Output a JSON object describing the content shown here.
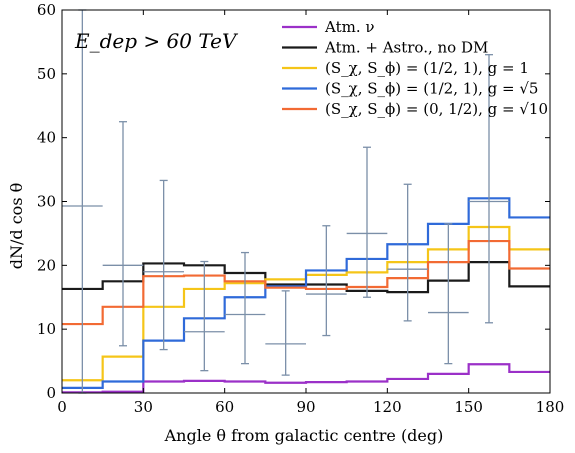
{
  "chart_data": {
    "type": "step",
    "annotation": "E_dep > 60 TeV",
    "xlabel": "Angle θ from galactic centre (deg)",
    "ylabel": "dN/d cos θ",
    "xlim": [
      0,
      180
    ],
    "ylim": [
      0,
      60
    ],
    "xticks": [
      "0",
      "30",
      "60",
      "90",
      "120",
      "150",
      "180"
    ],
    "yticks": [
      "0",
      "10",
      "20",
      "30",
      "40",
      "50",
      "60"
    ],
    "grid": false,
    "legend_position": "top-right",
    "bin_edges": [
      0,
      15,
      30,
      45,
      60,
      75,
      90,
      105,
      120,
      135,
      150,
      165,
      180
    ],
    "series": [
      {
        "name": "Atm. ν",
        "color": "#9b30c8",
        "values": [
          0.1,
          0.2,
          1.8,
          1.9,
          1.8,
          1.6,
          1.7,
          1.8,
          2.2,
          3.0,
          4.5,
          3.3
        ]
      },
      {
        "name": "Atm. + Astro., no DM",
        "color": "#1a1a1a",
        "values": [
          16.3,
          17.5,
          20.3,
          20.0,
          18.8,
          17.0,
          17.0,
          16.0,
          15.8,
          17.6,
          20.5,
          16.7
        ]
      },
      {
        "name": "(S_χ, S_ϕ) = (1/2, 1), g = 1",
        "color": "#f5c518",
        "values": [
          2.0,
          5.7,
          13.5,
          16.3,
          17.2,
          17.8,
          18.5,
          18.9,
          20.5,
          22.5,
          26.0,
          22.5
        ]
      },
      {
        "name": "(S_χ, S_ϕ) = (1/2, 1), g = √5",
        "color": "#2f6ad9",
        "values": [
          0.8,
          1.8,
          8.2,
          11.7,
          15.0,
          16.7,
          19.2,
          21.0,
          23.3,
          26.5,
          30.5,
          27.5
        ]
      },
      {
        "name": "(S_χ, S_ϕ) = (0, 1/2), g = √10",
        "color": "#f26a33",
        "values": [
          10.8,
          13.5,
          18.3,
          18.4,
          17.5,
          16.5,
          16.3,
          16.6,
          18.0,
          20.5,
          23.8,
          19.5
        ]
      }
    ],
    "data_points": {
      "color": "#7b8fa8",
      "x": [
        7.5,
        22.5,
        37.5,
        52.5,
        67.5,
        82.5,
        97.5,
        112.5,
        127.5,
        142.5,
        157.5
      ],
      "y": [
        29.3,
        20.0,
        19.0,
        9.6,
        12.3,
        7.7,
        15.5,
        25.0,
        19.4,
        12.6,
        30.0
      ],
      "y_low": [
        0,
        7.4,
        6.8,
        3.5,
        4.6,
        2.8,
        9.0,
        15.0,
        11.3,
        4.6,
        11.0
      ],
      "y_high": [
        60,
        42.5,
        33.3,
        20.6,
        22.0,
        16.0,
        26.2,
        38.5,
        32.7,
        26.5,
        53.0
      ]
    }
  }
}
